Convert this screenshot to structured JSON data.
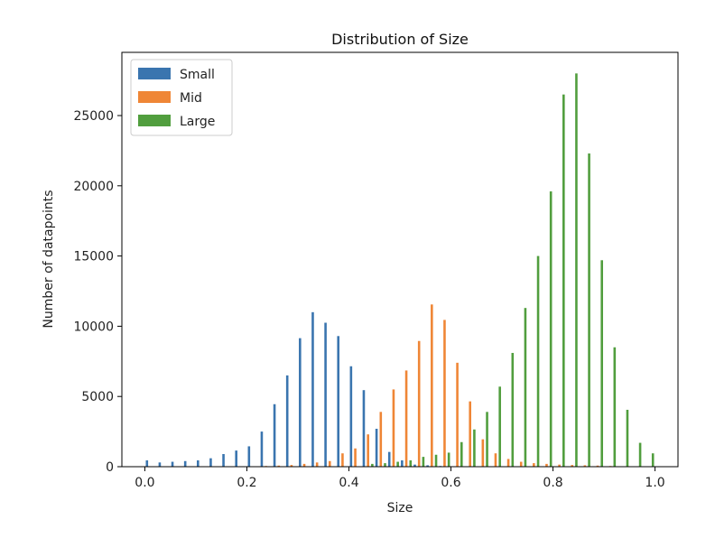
{
  "chart_data": {
    "type": "bar",
    "title": "Distribution of Size",
    "xlabel": "Size",
    "ylabel": "Number of datapoints",
    "xlim": [
      -0.045,
      1.045
    ],
    "ylim": [
      0,
      29500
    ],
    "xticks": [
      0.0,
      0.2,
      0.4,
      0.6,
      0.8,
      1.0
    ],
    "xtick_labels": [
      "0.0",
      "0.2",
      "0.4",
      "0.6",
      "0.8",
      "1.0"
    ],
    "yticks": [
      0,
      5000,
      10000,
      15000,
      20000,
      25000
    ],
    "ytick_labels": [
      "0",
      "5000",
      "10000",
      "15000",
      "20000",
      "25000"
    ],
    "grid": false,
    "legend_position": "top-left",
    "bin_width": 0.025,
    "bin_starts": [
      0.0,
      0.025,
      0.05,
      0.075,
      0.1,
      0.125,
      0.15,
      0.175,
      0.2,
      0.225,
      0.25,
      0.275,
      0.3,
      0.325,
      0.35,
      0.375,
      0.4,
      0.425,
      0.45,
      0.475,
      0.5,
      0.525,
      0.55,
      0.575,
      0.6,
      0.625,
      0.65,
      0.675,
      0.7,
      0.725,
      0.75,
      0.775,
      0.8,
      0.825,
      0.85,
      0.875,
      0.9,
      0.925,
      0.95,
      0.975
    ],
    "series": [
      {
        "name": "Small",
        "color": "#3a75af",
        "values": [
          450,
          300,
          350,
          400,
          450,
          600,
          900,
          1150,
          1450,
          2500,
          4450,
          6500,
          9150,
          11000,
          10250,
          9300,
          7150,
          5450,
          2700,
          1050,
          450,
          150,
          100,
          50,
          30,
          20,
          10,
          0,
          0,
          0,
          0,
          0,
          0,
          0,
          0,
          0,
          0,
          0,
          0,
          0
        ]
      },
      {
        "name": "Mid",
        "color": "#ef8636",
        "values": [
          0,
          0,
          0,
          0,
          0,
          0,
          0,
          0,
          30,
          50,
          80,
          120,
          200,
          300,
          400,
          950,
          1300,
          2300,
          3900,
          5500,
          6850,
          8950,
          11550,
          10450,
          7400,
          4650,
          1950,
          950,
          550,
          350,
          250,
          200,
          150,
          120,
          100,
          80,
          50,
          30,
          20,
          0
        ]
      },
      {
        "name": "Large",
        "color": "#519e3e",
        "values": [
          0,
          0,
          0,
          0,
          0,
          0,
          0,
          0,
          0,
          0,
          0,
          0,
          0,
          0,
          0,
          0,
          0,
          200,
          250,
          350,
          450,
          700,
          850,
          1000,
          1750,
          2650,
          3900,
          5700,
          8100,
          11300,
          15000,
          19600,
          26500,
          28000,
          22300,
          14700,
          8500,
          4050,
          1700,
          950
        ]
      }
    ]
  }
}
